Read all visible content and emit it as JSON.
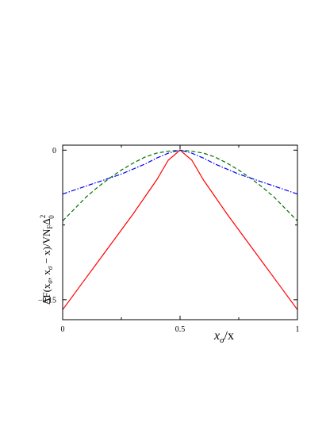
{
  "chart_data": {
    "type": "line",
    "title": "",
    "xlabel_parts": {
      "main": "x",
      "sub": "σ",
      "tail": "/x"
    },
    "ylabel_parts": {
      "lead": "ΔF(x",
      "sub1": "σ",
      "mid": ", x",
      "sub2": "σ",
      "mid2": " − x)/VN",
      "subF": "F",
      "mid3": "Δ",
      "sup0": "2",
      "sub0": "0"
    },
    "xlim": [
      0,
      1
    ],
    "ylim": [
      -0.17,
      0.005
    ],
    "x_ticks": [
      {
        "value": 0,
        "label": "0"
      },
      {
        "value": 0.5,
        "label": "0.5"
      },
      {
        "value": 1,
        "label": "1"
      }
    ],
    "x_minor_ticks": [
      0.25,
      0.75
    ],
    "y_ticks": [
      {
        "value": 0,
        "label": "0"
      },
      {
        "value": -0.15,
        "label": "−0.15"
      }
    ],
    "y_minor_ticks": [
      -0.075
    ],
    "grid": false,
    "series": [
      {
        "color": "#ff0000",
        "dash": "solid",
        "x": [
          0,
          0.05,
          0.1,
          0.15,
          0.2,
          0.25,
          0.3,
          0.35,
          0.4,
          0.45,
          0.5,
          0.55,
          0.6,
          0.65,
          0.7,
          0.75,
          0.8,
          0.85,
          0.9,
          0.95,
          1
        ],
        "y": [
          -0.16,
          -0.144,
          -0.128,
          -0.112,
          -0.096,
          -0.08,
          -0.064,
          -0.047,
          -0.03,
          -0.01,
          0,
          -0.01,
          -0.03,
          -0.047,
          -0.064,
          -0.08,
          -0.096,
          -0.112,
          -0.128,
          -0.144,
          -0.16
        ]
      },
      {
        "color": "#007000",
        "dash": "dashed",
        "x": [
          0,
          0.05,
          0.1,
          0.15,
          0.2,
          0.25,
          0.3,
          0.35,
          0.4,
          0.45,
          0.5,
          0.55,
          0.6,
          0.65,
          0.7,
          0.75,
          0.8,
          0.85,
          0.9,
          0.95,
          1
        ],
        "y": [
          -0.071,
          -0.059,
          -0.047,
          -0.037,
          -0.028,
          -0.02,
          -0.013,
          -0.007,
          -0.003,
          -0.001,
          0,
          -0.001,
          -0.003,
          -0.007,
          -0.013,
          -0.02,
          -0.028,
          -0.037,
          -0.047,
          -0.059,
          -0.071
        ]
      },
      {
        "color": "#0000ff",
        "dash": "dashdot",
        "x": [
          0,
          0.05,
          0.1,
          0.15,
          0.2,
          0.25,
          0.3,
          0.35,
          0.4,
          0.45,
          0.5,
          0.55,
          0.6,
          0.65,
          0.7,
          0.75,
          0.8,
          0.85,
          0.9,
          0.95,
          1
        ],
        "y": [
          -0.044,
          -0.04,
          -0.036,
          -0.032,
          -0.028,
          -0.024,
          -0.019,
          -0.014,
          -0.008,
          -0.003,
          0,
          -0.003,
          -0.008,
          -0.014,
          -0.019,
          -0.024,
          -0.028,
          -0.032,
          -0.036,
          -0.04,
          -0.044
        ]
      }
    ]
  }
}
